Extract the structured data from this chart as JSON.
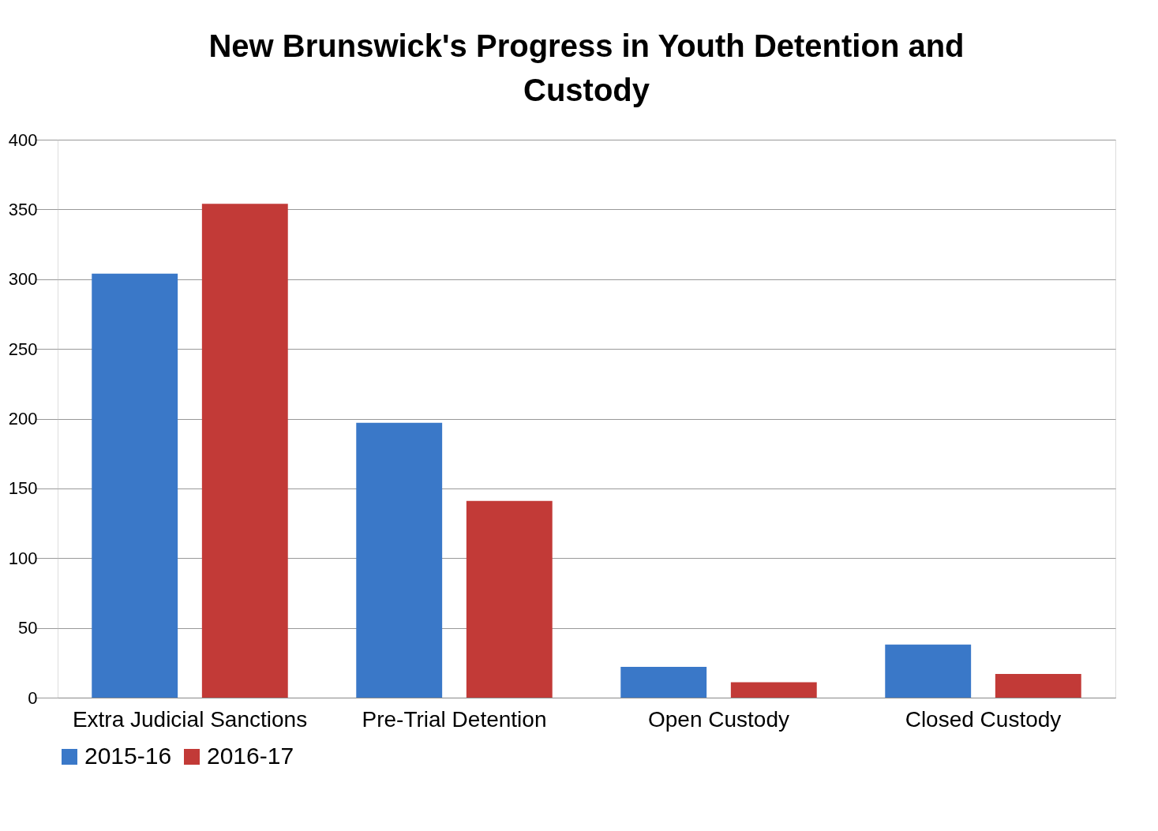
{
  "chart_data": {
    "type": "bar",
    "title": "New Brunswick's Progress in Youth Detention and Custody",
    "categories": [
      "Extra Judicial Sanctions",
      "Pre-Trial Detention",
      "Open Custody",
      "Closed Custody"
    ],
    "series": [
      {
        "name": "2015-16",
        "color": "#3a78c8",
        "values": [
          304,
          197,
          22,
          38
        ]
      },
      {
        "name": "2016-17",
        "color": "#c23a37",
        "values": [
          354,
          141,
          11,
          17
        ]
      }
    ],
    "ylim": [
      0,
      400
    ],
    "yticks": [
      0,
      50,
      100,
      150,
      200,
      250,
      300,
      350,
      400
    ],
    "grid": "y",
    "legend": "bottom"
  }
}
